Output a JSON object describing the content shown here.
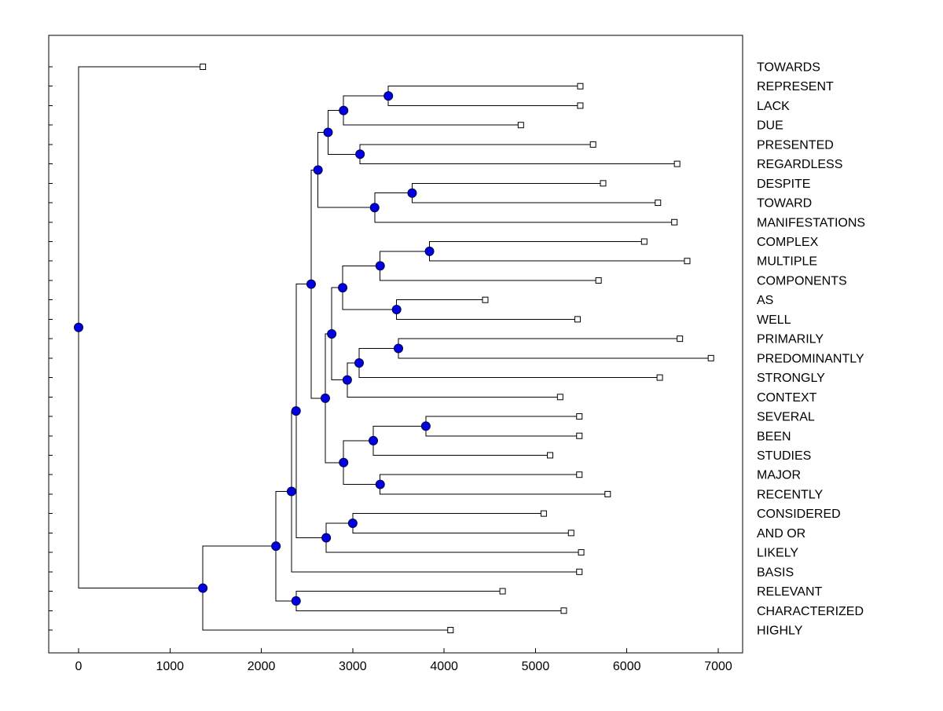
{
  "figure": {
    "title": "",
    "colors": {
      "background": "#ffffff",
      "line": "#000000",
      "axis": "#000000",
      "text": "#000000",
      "node_fill": "#0000e0",
      "node_edge": "#00004d",
      "leaf_marker_fill": "#ffffff",
      "leaf_marker_edge": "#000000"
    }
  },
  "chart_data": {
    "type": "dendrogram",
    "orientation": "horizontal-root-left",
    "title": "",
    "xlabel": "",
    "ylabel": "",
    "xlim": [
      -330,
      7270
    ],
    "x_ticks": [
      0,
      1000,
      2000,
      3000,
      4000,
      5000,
      6000,
      7000
    ],
    "grid": false,
    "legend": "none",
    "n_leaves": 30,
    "leaves": [
      {
        "label": "TOWARDS",
        "value": 1360
      },
      {
        "label": "REPRESENT",
        "value": 5490
      },
      {
        "label": "LACK",
        "value": 5490
      },
      {
        "label": "DUE",
        "value": 4840
      },
      {
        "label": "PRESENTED",
        "value": 5630
      },
      {
        "label": "REGARDLESS",
        "value": 6550
      },
      {
        "label": "DESPITE",
        "value": 5740
      },
      {
        "label": "TOWARD",
        "value": 6340
      },
      {
        "label": "MANIFESTATIONS",
        "value": 6520
      },
      {
        "label": "COMPLEX",
        "value": 6190
      },
      {
        "label": "MULTIPLE",
        "value": 6660
      },
      {
        "label": "COMPONENTS",
        "value": 5690
      },
      {
        "label": "AS",
        "value": 4450
      },
      {
        "label": "WELL",
        "value": 5460
      },
      {
        "label": "PRIMARILY",
        "value": 6580
      },
      {
        "label": "PREDOMINANTLY",
        "value": 6920
      },
      {
        "label": "STRONGLY",
        "value": 6360
      },
      {
        "label": "CONTEXT",
        "value": 5270
      },
      {
        "label": "SEVERAL",
        "value": 5480
      },
      {
        "label": "BEEN",
        "value": 5480
      },
      {
        "label": "STUDIES",
        "value": 5160
      },
      {
        "label": "MAJOR",
        "value": 5480
      },
      {
        "label": "RECENTLY",
        "value": 5790
      },
      {
        "label": "CONSIDERED",
        "value": 5090
      },
      {
        "label": "AND OR",
        "value": 5390
      },
      {
        "label": "LIKELY",
        "value": 5500
      },
      {
        "label": "BASIS",
        "value": 5480
      },
      {
        "label": "RELEVANT",
        "value": 4640
      },
      {
        "label": "CHARACTERIZED",
        "value": 5310
      },
      {
        "label": "HIGHLY",
        "value": 4070
      }
    ],
    "merge_index_note": "child index < 30 refers to leaves[index] (top-to-bottom); index 30+k refers to merges[k]; each merge is [childA, childB, height]",
    "merges": [
      [
        1,
        2,
        3390
      ],
      [
        30,
        3,
        2900
      ],
      [
        4,
        5,
        3080
      ],
      [
        31,
        32,
        2730
      ],
      [
        6,
        7,
        3650
      ],
      [
        34,
        8,
        3240
      ],
      [
        33,
        35,
        2620
      ],
      [
        9,
        10,
        3840
      ],
      [
        37,
        11,
        3300
      ],
      [
        12,
        13,
        3480
      ],
      [
        38,
        39,
        2890
      ],
      [
        14,
        15,
        3500
      ],
      [
        41,
        16,
        3070
      ],
      [
        42,
        17,
        2940
      ],
      [
        40,
        43,
        2770
      ],
      [
        18,
        19,
        3800
      ],
      [
        45,
        20,
        3225
      ],
      [
        21,
        22,
        3300
      ],
      [
        46,
        47,
        2900
      ],
      [
        44,
        48,
        2700
      ],
      [
        36,
        49,
        2545
      ],
      [
        23,
        24,
        3000
      ],
      [
        51,
        25,
        2710
      ],
      [
        50,
        52,
        2380
      ],
      [
        53,
        26,
        2330
      ],
      [
        27,
        28,
        2380
      ],
      [
        54,
        55,
        2160
      ],
      [
        56,
        29,
        1360
      ],
      [
        0,
        57,
        0
      ]
    ]
  }
}
